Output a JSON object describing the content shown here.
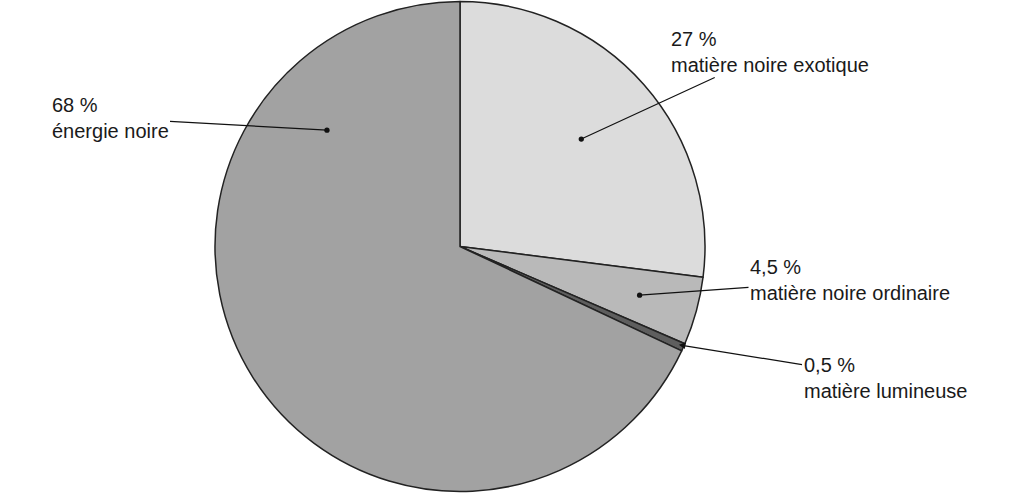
{
  "chart_data": {
    "type": "pie",
    "categories": [
      "matière noire exotique",
      "matière noire ordinaire",
      "matière lumineuse",
      "énergie noire"
    ],
    "values": [
      27,
      4.5,
      0.5,
      68
    ],
    "value_labels": [
      "27 %",
      "4,5 %",
      "0,5 %",
      "68 %"
    ],
    "colors": [
      "#dcdcdc",
      "#b9b9b9",
      "#5e5e5e",
      "#a2a2a2"
    ],
    "data_labels": true
  }
}
